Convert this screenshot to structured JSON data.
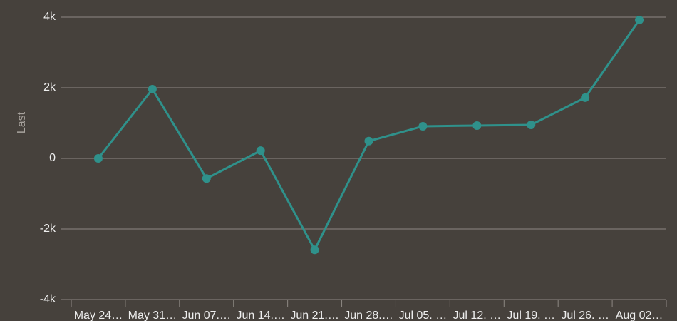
{
  "chart_data": {
    "type": "line",
    "y_label": "Last",
    "categories": [
      "May 24…",
      "May 31…",
      "Jun 07.…",
      "Jun 14.…",
      "Jun 21.…",
      "Jun 28.…",
      "Jul 05. …",
      "Jul 12. …",
      "Jul 19. …",
      "Jul 26. …",
      "Aug 02…"
    ],
    "series": [
      {
        "name": "Last",
        "color": "#2f918b",
        "values": [
          0,
          1960,
          -570,
          220,
          -2590,
          490,
          910,
          930,
          950,
          1720,
          3920
        ]
      }
    ],
    "ylim": [
      -4000,
      4000
    ],
    "yticks": [
      {
        "value": -4000,
        "label": "-4k"
      },
      {
        "value": -2000,
        "label": "-2k"
      },
      0,
      {
        "value": 2000,
        "label": "2k"
      },
      {
        "value": 4000,
        "label": "4k"
      }
    ],
    "grid": true
  }
}
